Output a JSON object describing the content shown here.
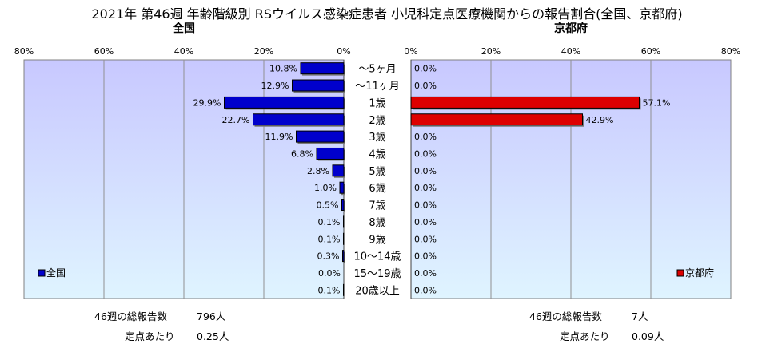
{
  "title": "2021年 第46週 年齢階級別 RSウイルス感染症患者 小児科定点医療機関からの報告割合(全国、京都府)",
  "chart_data": {
    "type": "bar",
    "categories": [
      "～5ヶ月",
      "～11ヶ月",
      "1歳",
      "2歳",
      "3歳",
      "4歳",
      "5歳",
      "6歳",
      "7歳",
      "8歳",
      "9歳",
      "10～14歳",
      "15～19歳",
      "20歳以上"
    ],
    "series": [
      {
        "name": "全国",
        "panel_title": "全国",
        "color": "#0000cc",
        "values": [
          10.8,
          12.9,
          29.9,
          22.7,
          11.9,
          6.8,
          2.8,
          1.0,
          0.5,
          0.1,
          0.1,
          0.3,
          0.0,
          0.1
        ],
        "value_labels": [
          "10.8%",
          "12.9%",
          "29.9%",
          "22.7%",
          "11.9%",
          "6.8%",
          "2.8%",
          "1.0%",
          "0.5%",
          "0.1%",
          "0.1%",
          "0.3%",
          "0.0%",
          "0.1%"
        ],
        "axis_direction": "reversed",
        "xlim": [
          0,
          80
        ],
        "ticks": [
          "80%",
          "60%",
          "40%",
          "20%",
          "0%"
        ],
        "legend_position": "bottom-left",
        "plot_gradient": [
          "#c8c8ff",
          "#dff4ff"
        ]
      },
      {
        "name": "京都府",
        "panel_title": "京都府",
        "color": "#dd0000",
        "values": [
          0.0,
          0.0,
          57.1,
          42.9,
          0.0,
          0.0,
          0.0,
          0.0,
          0.0,
          0.0,
          0.0,
          0.0,
          0.0,
          0.0
        ],
        "value_labels": [
          "0.0%",
          "0.0%",
          "57.1%",
          "42.9%",
          "0.0%",
          "0.0%",
          "0.0%",
          "0.0%",
          "0.0%",
          "0.0%",
          "0.0%",
          "0.0%",
          "0.0%",
          "0.0%"
        ],
        "axis_direction": "normal",
        "xlim": [
          0,
          80
        ],
        "ticks": [
          "0%",
          "20%",
          "40%",
          "60%",
          "80%"
        ],
        "legend_position": "bottom-right",
        "plot_gradient": [
          "#c8c8ff",
          "#dff4ff"
        ]
      }
    ],
    "grid": true
  },
  "footer": {
    "left": {
      "total_label": "46週の総報告数",
      "total_value": "796人",
      "per_label": "定点あたり",
      "per_value": "0.25人"
    },
    "right": {
      "total_label": "46週の総報告数",
      "total_value": "7人",
      "per_label": "定点あたり",
      "per_value": "0.09人"
    }
  }
}
